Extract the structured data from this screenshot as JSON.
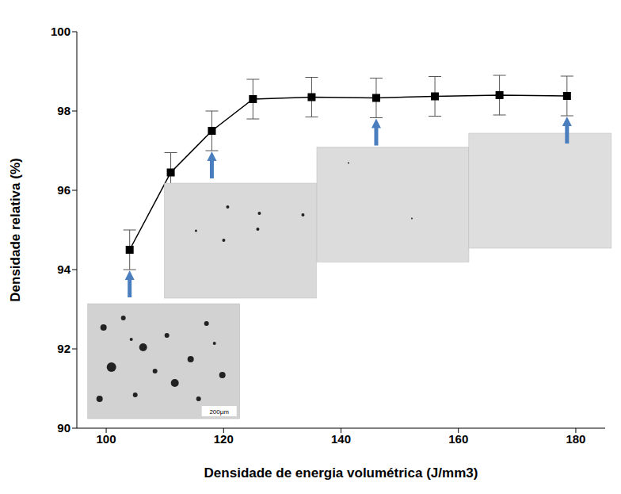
{
  "chart_data": {
    "type": "line",
    "xlabel": "Densidade de energia volumétrica (J/mm3)",
    "ylabel": "Densidade relativa (%)",
    "x": [
      104,
      111,
      118,
      125,
      135,
      146,
      156,
      167,
      178.5
    ],
    "values": [
      94.5,
      96.45,
      97.5,
      98.3,
      98.35,
      98.33,
      98.37,
      98.4,
      98.38
    ],
    "errors": [
      0.5,
      0.5,
      0.5,
      0.5,
      0.5,
      0.5,
      0.5,
      0.5,
      0.5
    ],
    "color": "#000000",
    "marker": "square",
    "line_style": "solid",
    "xlim": [
      95,
      185
    ],
    "xticks": [
      100,
      120,
      140,
      160,
      180
    ],
    "ylim": [
      90,
      100
    ],
    "yticks": [
      90,
      92,
      94,
      96,
      98,
      100
    ],
    "grid": false,
    "micrograph_x": [
      104,
      118,
      146,
      178.5
    ],
    "scale_bar": "200µm"
  }
}
